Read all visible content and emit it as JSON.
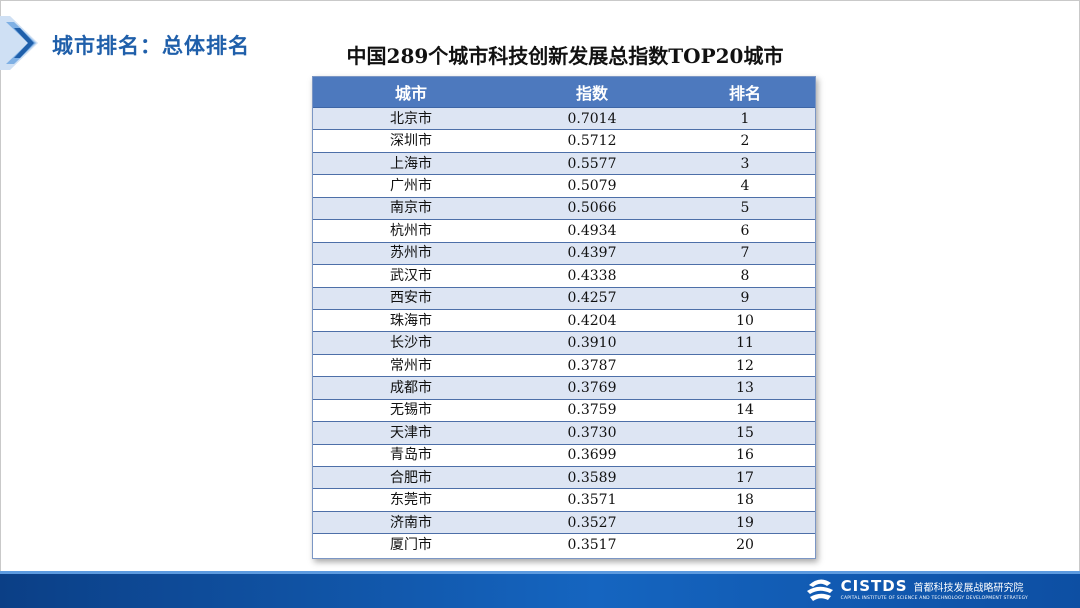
{
  "section_title": "城市排名：总体排名",
  "table_title": "中国289个城市科技创新发展总指数TOP20城市",
  "table": {
    "headers": [
      "城市",
      "指数",
      "排名"
    ],
    "rows": [
      [
        "北京市",
        "0.7014",
        "1"
      ],
      [
        "深圳市",
        "0.5712",
        "2"
      ],
      [
        "上海市",
        "0.5577",
        "3"
      ],
      [
        "广州市",
        "0.5079",
        "4"
      ],
      [
        "南京市",
        "0.5066",
        "5"
      ],
      [
        "杭州市",
        "0.4934",
        "6"
      ],
      [
        "苏州市",
        "0.4397",
        "7"
      ],
      [
        "武汉市",
        "0.4338",
        "8"
      ],
      [
        "西安市",
        "0.4257",
        "9"
      ],
      [
        "珠海市",
        "0.4204",
        "10"
      ],
      [
        "长沙市",
        "0.3910",
        "11"
      ],
      [
        "常州市",
        "0.3787",
        "12"
      ],
      [
        "成都市",
        "0.3769",
        "13"
      ],
      [
        "无锡市",
        "0.3759",
        "14"
      ],
      [
        "天津市",
        "0.3730",
        "15"
      ],
      [
        "青岛市",
        "0.3699",
        "16"
      ],
      [
        "合肥市",
        "0.3589",
        "17"
      ],
      [
        "东莞市",
        "0.3571",
        "18"
      ],
      [
        "济南市",
        "0.3527",
        "19"
      ],
      [
        "厦门市",
        "0.3517",
        "20"
      ]
    ]
  },
  "footer": {
    "logo_name": "CISTDS",
    "logo_cn": "首都科技发展战略研究院",
    "logo_en": "CAPITAL INSTITUTE OF SCIENCE AND TECHNOLOGY DEVELOPMENT STRATEGY"
  },
  "colors": {
    "accent": "#1f5faa",
    "header_bg": "#4d79be",
    "row_alt": "#dde5f3",
    "footer": "#1565c0"
  }
}
